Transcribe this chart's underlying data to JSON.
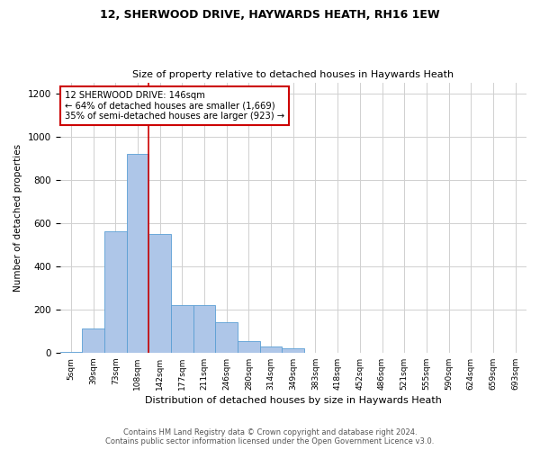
{
  "title_line1": "12, SHERWOOD DRIVE, HAYWARDS HEATH, RH16 1EW",
  "title_line2": "Size of property relative to detached houses in Haywards Heath",
  "xlabel": "Distribution of detached houses by size in Haywards Heath",
  "ylabel": "Number of detached properties",
  "bar_labels": [
    "5sqm",
    "39sqm",
    "73sqm",
    "108sqm",
    "142sqm",
    "177sqm",
    "211sqm",
    "246sqm",
    "280sqm",
    "314sqm",
    "349sqm",
    "383sqm",
    "418sqm",
    "452sqm",
    "486sqm",
    "521sqm",
    "555sqm",
    "590sqm",
    "624sqm",
    "659sqm",
    "693sqm"
  ],
  "bar_values": [
    5,
    110,
    560,
    920,
    550,
    220,
    220,
    140,
    55,
    30,
    22,
    0,
    0,
    0,
    0,
    0,
    0,
    0,
    0,
    0,
    0
  ],
  "bar_color": "#aec6e8",
  "bar_edgecolor": "#5a9fd4",
  "vline_index": 3.5,
  "annotation_line1": "12 SHERWOOD DRIVE: 146sqm",
  "annotation_line2": "← 64% of detached houses are smaller (1,669)",
  "annotation_line3": "35% of semi-detached houses are larger (923) →",
  "annotation_box_color": "#ffffff",
  "annotation_box_edgecolor": "#cc0000",
  "vline_color": "#cc0000",
  "ylim": [
    0,
    1250
  ],
  "yticks": [
    0,
    200,
    400,
    600,
    800,
    1000,
    1200
  ],
  "footer1": "Contains HM Land Registry data © Crown copyright and database right 2024.",
  "footer2": "Contains public sector information licensed under the Open Government Licence v3.0.",
  "background_color": "#ffffff",
  "grid_color": "#d0d0d0"
}
